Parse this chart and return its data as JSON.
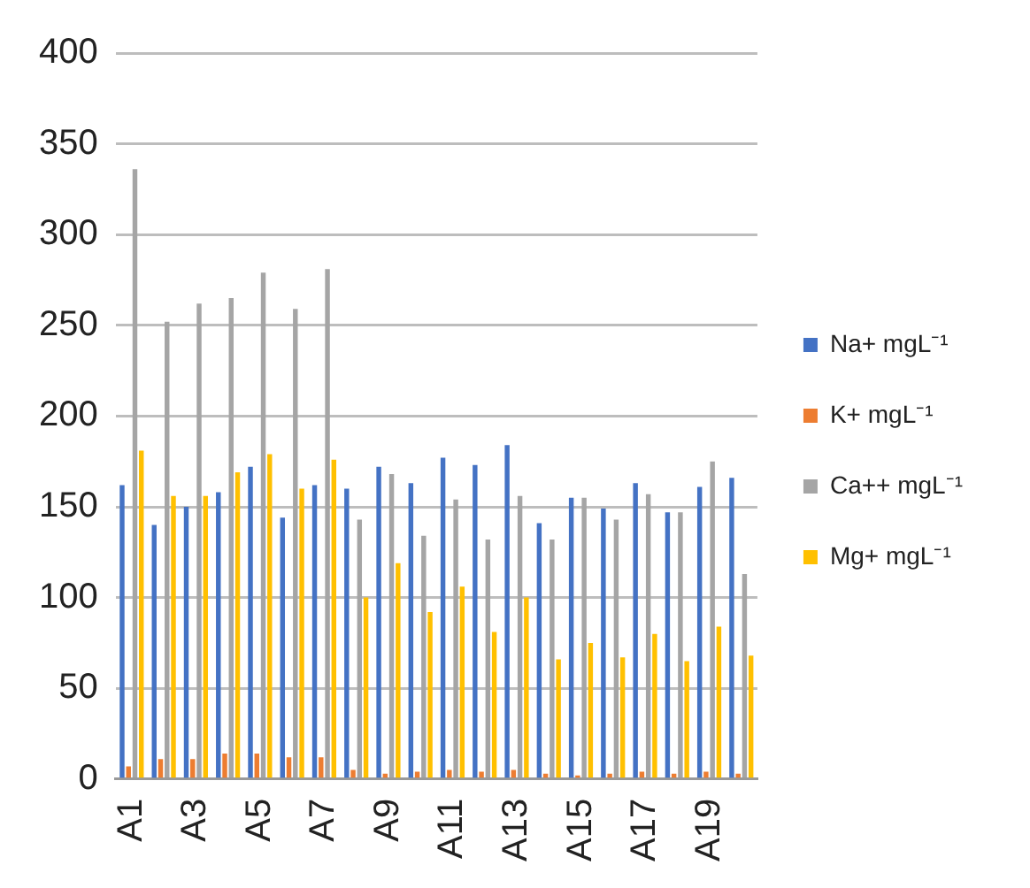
{
  "chart_data": {
    "type": "bar",
    "categories": [
      "A1",
      null,
      "A3",
      null,
      "A5",
      null,
      "A7",
      null,
      "A9",
      null,
      "A11",
      null,
      "A13",
      null,
      "A15",
      null,
      "A17",
      null,
      "A19",
      null
    ],
    "series": [
      {
        "name": "Na+ mgL⁻¹",
        "color": "#4472c4",
        "values": [
          162,
          140,
          150,
          158,
          172,
          144,
          162,
          160,
          172,
          163,
          177,
          173,
          184,
          141,
          155,
          149,
          163,
          147,
          161,
          166
        ]
      },
      {
        "name": "K+ mgL⁻¹",
        "color": "#ed7d31",
        "values": [
          7,
          11,
          11,
          14,
          14,
          12,
          12,
          5,
          3,
          4,
          5,
          4,
          5,
          3,
          2,
          3,
          4,
          3,
          4,
          3
        ]
      },
      {
        "name": "Ca++ mgL⁻¹",
        "color": "#a5a5a5",
        "values": [
          336,
          252,
          262,
          265,
          279,
          259,
          281,
          143,
          168,
          134,
          154,
          132,
          156,
          132,
          155,
          143,
          157,
          147,
          175,
          113
        ]
      },
      {
        "name": "Mg+ mgL⁻¹",
        "color": "#ffc000",
        "values": [
          181,
          156,
          156,
          169,
          179,
          160,
          176,
          100,
          119,
          92,
          106,
          81,
          100,
          66,
          75,
          67,
          80,
          65,
          84,
          68
        ]
      }
    ],
    "ylim": [
      0,
      400
    ],
    "yticks": [
      0,
      50,
      100,
      150,
      200,
      250,
      300,
      350,
      400
    ],
    "grid": "y",
    "legend": "right"
  }
}
